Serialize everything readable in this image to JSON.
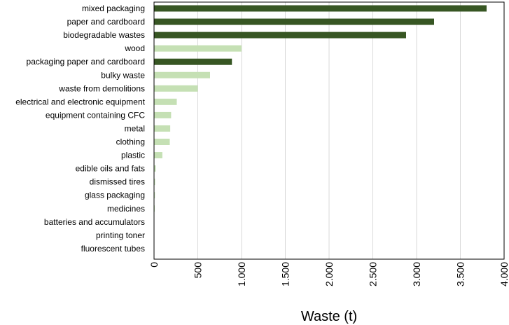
{
  "chart_data": {
    "type": "bar",
    "orientation": "horizontal",
    "title": "",
    "xlabel": "Waste (t)",
    "ylabel": "",
    "xlim": [
      0,
      4000
    ],
    "x_ticks": [
      0,
      500,
      1000,
      1500,
      2000,
      2500,
      3000,
      3500,
      4000
    ],
    "x_tick_labels": [
      "0",
      "500",
      "1.000",
      "1.500",
      "2.000",
      "2.500",
      "3.000",
      "3.500",
      "4.000"
    ],
    "grid": "vertical",
    "legend": "none",
    "categories": [
      "mixed packaging",
      "paper and cardboard",
      "biodegradable wastes",
      "wood",
      "packaging paper and cardboard",
      "bulky waste",
      "waste from demolitions",
      "electrical and electronic equipment",
      "equipment containing CFC",
      "metal",
      "clothing",
      "plastic",
      "edible oils and fats",
      "dismissed tires",
      "glass packaging",
      "medicines",
      "batteries and accumulators",
      "printing toner",
      "fluorescent tubes"
    ],
    "values": [
      3800,
      3200,
      2880,
      1000,
      890,
      640,
      500,
      260,
      195,
      185,
      180,
      95,
      20,
      12,
      10,
      8,
      4,
      3,
      2
    ],
    "bar_colors": [
      "#375623",
      "#375623",
      "#375623",
      "#c5e0b4",
      "#375623",
      "#c5e0b4",
      "#c5e0b4",
      "#c5e0b4",
      "#c5e0b4",
      "#c5e0b4",
      "#c5e0b4",
      "#c5e0b4",
      "#c5e0b4",
      "#c5e0b4",
      "#c5e0b4",
      "#c5e0b4",
      "#c5e0b4",
      "#c5e0b4",
      "#c5e0b4"
    ]
  }
}
